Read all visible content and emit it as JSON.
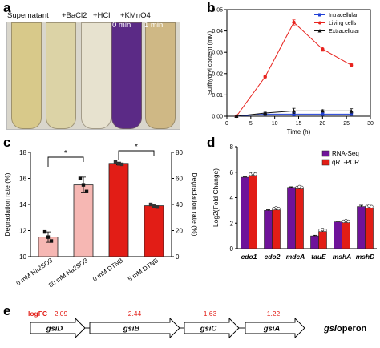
{
  "panels": {
    "a": "a",
    "b": "b",
    "c": "c",
    "d": "d",
    "e": "e"
  },
  "photo": {
    "labels": [
      "Supernatant",
      "+BaCl2",
      "+HCl",
      "+KMnO4"
    ],
    "time_labels": [
      "0 min",
      "1 min"
    ],
    "tube_colors": [
      "#d8c98a",
      "#dcd3a6",
      "#e7e2cf",
      "#5b2a86",
      "#cfb885"
    ]
  },
  "chart_data": [
    {
      "id": "b",
      "type": "line",
      "title": "",
      "xlabel": "Time (h)",
      "ylabel": "Sulfhydryl content (mM)",
      "xlim": [
        0,
        30
      ],
      "ylim": [
        0,
        0.05
      ],
      "xticks": [
        "0",
        "5",
        "10",
        "15",
        "20",
        "25",
        "30"
      ],
      "yticks": [
        "0.00",
        "0.01",
        "0.02",
        "0.03",
        "0.04",
        "0.05"
      ],
      "legend_position": "top-right",
      "x": [
        2,
        8,
        14,
        20,
        26
      ],
      "series": [
        {
          "name": "Intracellular",
          "color": "#1f3fd6",
          "marker": "square",
          "values": [
            0.0,
            0.001,
            0.001,
            0.001,
            0.001
          ],
          "errors": [
            0.0003,
            0.0003,
            0.0008,
            0.0005,
            0.0004
          ]
        },
        {
          "name": "Living cells",
          "color": "#e8231e",
          "marker": "circle",
          "values": [
            0.0,
            0.0185,
            0.044,
            0.0315,
            0.024
          ],
          "errors": [
            0.0003,
            0.0005,
            0.0012,
            0.001,
            0.0006
          ]
        },
        {
          "name": "Extracellular",
          "color": "#111111",
          "marker": "triangle",
          "values": [
            0.0,
            0.0015,
            0.0025,
            0.0025,
            0.0025
          ],
          "errors": [
            0.0003,
            0.0004,
            0.0012,
            0.0005,
            0.001
          ]
        }
      ]
    },
    {
      "id": "c",
      "type": "bar",
      "title": "",
      "ylabel_left": "Degradation rate (%)",
      "ylabel_right": "Degradation rate (%)",
      "ylim_left": [
        10,
        18
      ],
      "yticks_left": [
        "10",
        "12",
        "14",
        "16",
        "18"
      ],
      "ylim_right": [
        0,
        80
      ],
      "yticks_right": [
        "0",
        "20",
        "40",
        "60",
        "80"
      ],
      "categories": [
        "0 mM Na2SO3",
        "80 mM Na2SO3",
        "0 mM DTNB",
        "5 mM DTNB"
      ],
      "values": [
        11.5,
        15.5,
        71.5,
        39
      ],
      "axis": [
        "left",
        "left",
        "right",
        "right"
      ],
      "colors": [
        "#f6b7b3",
        "#f6b7b3",
        "#e21d16",
        "#e21d16"
      ],
      "errors": [
        0.4,
        0.6,
        1.0,
        1.2
      ],
      "points": [
        [
          11.9,
          11.5,
          11.2
        ],
        [
          16.0,
          15.5,
          15.0
        ],
        [
          72.5,
          71.2,
          70.8
        ],
        [
          40.0,
          38.6,
          38.0
        ]
      ],
      "significance": [
        "*",
        "*"
      ]
    },
    {
      "id": "d",
      "type": "bar",
      "title": "",
      "ylabel": "Log2(Fold Change)",
      "ylim": [
        0,
        8
      ],
      "yticks": [
        "0",
        "2",
        "4",
        "6",
        "8"
      ],
      "categories": [
        "cdo1",
        "cdo2",
        "mdeA",
        "tauE",
        "mshA",
        "mshD"
      ],
      "legend_position": "top-right",
      "series": [
        {
          "name": "RNA-Seq",
          "color": "#6f139a",
          "values": [
            5.6,
            3.0,
            4.8,
            1.0,
            2.1,
            3.3
          ],
          "errors": [
            0.05,
            0.05,
            0.05,
            0.05,
            0.05,
            0.1
          ]
        },
        {
          "name": "qRT-PCR",
          "color": "#e21d16",
          "values": [
            5.75,
            3.05,
            4.7,
            1.35,
            2.05,
            3.2
          ],
          "errors": [
            0.25,
            0.1,
            0.1,
            0.1,
            0.15,
            0.1
          ]
        }
      ]
    }
  ],
  "operon": {
    "logfc_label": "logFC",
    "genes": [
      {
        "name": "gsiD",
        "logfc": "2.09"
      },
      {
        "name": "gsiB",
        "logfc": "2.44"
      },
      {
        "name": "gsiC",
        "logfc": "1.63"
      },
      {
        "name": "gsiA",
        "logfc": "1.22"
      }
    ],
    "operon_gene": "gsi",
    "operon_word": "operon"
  },
  "colors": {
    "logfc": "#e21d16"
  }
}
